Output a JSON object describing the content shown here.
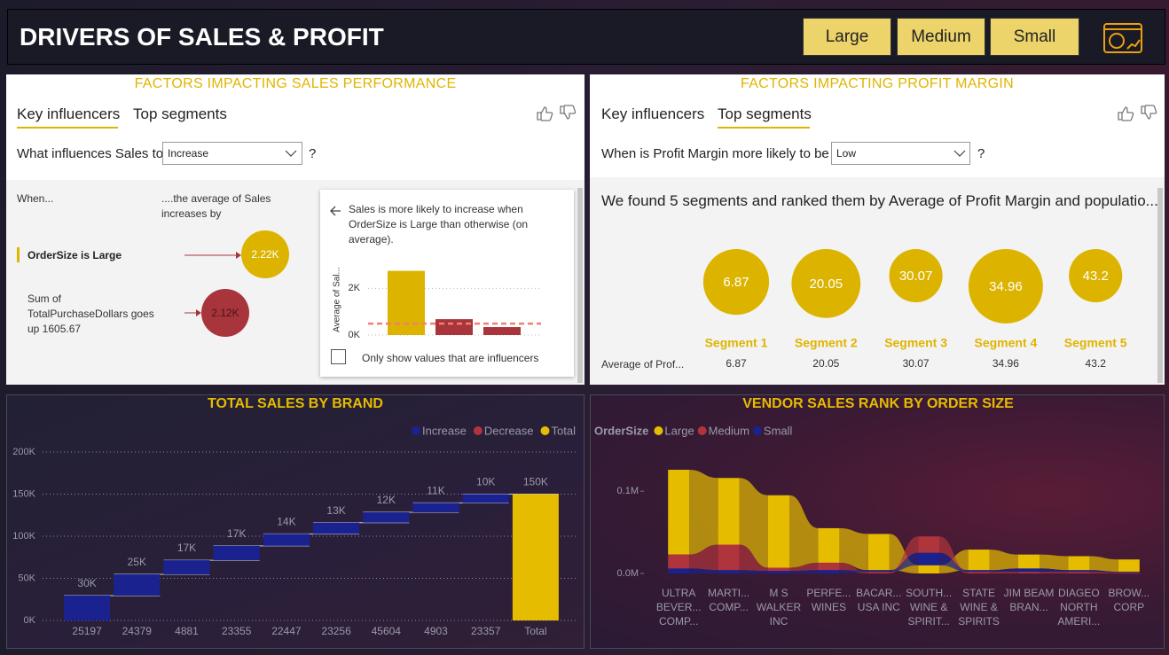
{
  "header": {
    "title": "DRIVERS OF SALES & PROFIT",
    "buttons": [
      "Large",
      "Medium",
      "Small"
    ]
  },
  "sales_panel": {
    "title": "FACTORS IMPACTING SALES PERFORMANCE",
    "tabs": [
      "Key influencers",
      "Top segments"
    ],
    "question": "What influences Sales to",
    "dropdown": "Increase",
    "question_mark": "?",
    "when_header": "When...",
    "effect_header": "....the average of Sales increases by",
    "influencers": [
      {
        "label": "OrderSize is Large",
        "effect": "2.22K"
      },
      {
        "label": "Sum of TotalPurchaseDollars goes up 1605.67",
        "effect": "2.12K"
      }
    ],
    "detail": {
      "text": "Sales is more likely to increase when OrderSize is Large than otherwise (on average).",
      "checkbox": "Only show values that are influencers"
    }
  },
  "profit_panel": {
    "title": "FACTORS IMPACTING PROFIT MARGIN",
    "tabs": [
      "Key influencers",
      "Top segments"
    ],
    "question": "When is Profit Margin more likely to be",
    "dropdown": "Low",
    "question_mark": "?",
    "summary": "We found 5 segments and ranked them by Average of Profit Margin and populatio...",
    "row_label": "Average of Prof..."
  },
  "chart_data": [
    {
      "type": "bar",
      "ylabel": "Average of Sal...",
      "values": [
        2750,
        680,
        340
      ],
      "colors": [
        "#dcb400",
        "#a8343c",
        "#a8343c"
      ],
      "reference": 490,
      "reference_color": "#f08070",
      "ylim": [
        0,
        3000
      ],
      "yticks": [
        {
          "value": 0,
          "label": "0K"
        },
        {
          "value": 2000,
          "label": "2K"
        }
      ]
    },
    {
      "type": "bubble",
      "categories": [
        "Segment 1",
        "Segment 2",
        "Segment 3",
        "Segment 4",
        "Segment 5"
      ],
      "values": [
        6.87,
        20.05,
        30.07,
        34.96,
        43.2
      ],
      "sizes": [
        61,
        67,
        40,
        78,
        40
      ],
      "color": "#dcb400"
    },
    {
      "type": "waterfall",
      "title": "TOTAL SALES BY BRAND",
      "legend": [
        {
          "name": "Increase",
          "color": "#1a2290"
        },
        {
          "name": "Decrease",
          "color": "#b0343c"
        },
        {
          "name": "Total",
          "color": "#e6bc00"
        }
      ],
      "categories": [
        "25197",
        "24379",
        "4881",
        "23355",
        "22447",
        "23256",
        "45604",
        "4903",
        "23357",
        "Total"
      ],
      "values": [
        29500,
        25200,
        16800,
        17100,
        14200,
        13300,
        12300,
        11200,
        10400,
        150000
      ],
      "value_labels": [
        "30K",
        "25K",
        "17K",
        "17K",
        "14K",
        "13K",
        "12K",
        "11K",
        "10K",
        "150K"
      ],
      "colors": [
        "#1a2290",
        "#1a2290",
        "#1a2290",
        "#1a2290",
        "#1a2290",
        "#1a2290",
        "#1a2290",
        "#1a2290",
        "#1a2290",
        "#e6bc00"
      ],
      "ylim": [
        0,
        200000
      ],
      "yticks": [
        {
          "value": 0,
          "label": "0K"
        },
        {
          "value": 50000,
          "label": "50K"
        },
        {
          "value": 100000,
          "label": "100K"
        },
        {
          "value": 150000,
          "label": "150K"
        },
        {
          "value": 200000,
          "label": "200K"
        }
      ],
      "grid": true
    },
    {
      "type": "ribbon",
      "title": "VENDOR SALES RANK BY ORDER SIZE",
      "legend_title": "OrderSize",
      "categories": [
        "ULTRA BEVER... COMP...",
        "MARTI... COMP...",
        "M S WALKER INC",
        "PERFE... WINES",
        "BACAR... USA INC",
        "SOUTH... WINE & SPIRIT...",
        "STATE WINE & SPIRITS",
        "JIM BEAM BRAN...",
        "DIAGEO NORTH AMERI...",
        "BROW... CORP"
      ],
      "series": [
        {
          "name": "Large",
          "color": "#e6bc00",
          "values": [
            103000,
            81000,
            88000,
            42000,
            44000,
            10000,
            25000,
            17000,
            17000,
            15000
          ]
        },
        {
          "name": "Medium",
          "color": "#b0343c",
          "values": [
            17000,
            31000,
            4000,
            9000,
            2000,
            20000,
            2000,
            2000,
            2000,
            1000
          ]
        },
        {
          "name": "Small",
          "color": "#1a2290",
          "values": [
            6000,
            4000,
            3000,
            4000,
            2000,
            15000,
            2000,
            4000,
            2000,
            1000
          ]
        }
      ],
      "ylim": [
        0,
        140000
      ],
      "yticks": [
        {
          "value": 0,
          "label": "0.0M"
        },
        {
          "value": 100000,
          "label": "0.1M"
        }
      ]
    }
  ]
}
